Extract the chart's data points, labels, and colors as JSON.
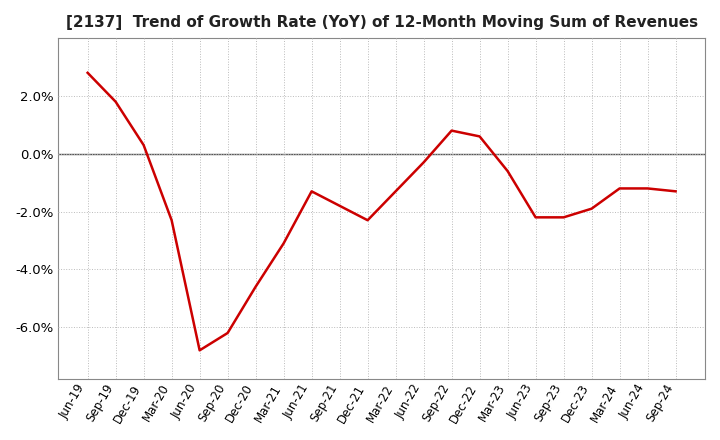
{
  "title": "[2137]  Trend of Growth Rate (YoY) of 12-Month Moving Sum of Revenues",
  "title_fontsize": 11,
  "line_color": "#cc0000",
  "line_width": 1.8,
  "background_color": "#ffffff",
  "plot_bg_color": "#ffffff",
  "ylim": [
    -0.078,
    0.04
  ],
  "yticks": [
    -0.06,
    -0.04,
    -0.02,
    0.0,
    0.02
  ],
  "x_labels": [
    "Jun-19",
    "Sep-19",
    "Dec-19",
    "Mar-20",
    "Jun-20",
    "Sep-20",
    "Dec-20",
    "Mar-21",
    "Jun-21",
    "Sep-21",
    "Dec-21",
    "Mar-22",
    "Jun-22",
    "Sep-22",
    "Dec-22",
    "Mar-23",
    "Jun-23",
    "Sep-23",
    "Dec-23",
    "Mar-24",
    "Jun-24",
    "Sep-24"
  ],
  "y_values": [
    0.028,
    0.018,
    0.003,
    -0.023,
    -0.068,
    -0.062,
    -0.046,
    -0.031,
    -0.013,
    -0.018,
    -0.023,
    -0.013,
    -0.003,
    0.008,
    0.006,
    -0.006,
    -0.022,
    -0.022,
    -0.019,
    -0.012,
    -0.012,
    -0.013
  ],
  "grid_color": "#bbbbbb",
  "spine_color": "#888888",
  "zero_line_color": "#555555",
  "tick_label_fontsize": 8.5,
  "ytick_label_fontsize": 9.5
}
